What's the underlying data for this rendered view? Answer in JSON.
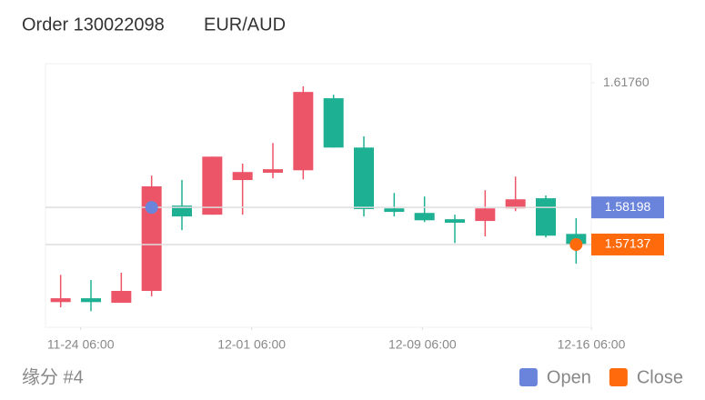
{
  "chart_data": {
    "type": "candlestick",
    "title": "Order 130022098",
    "subtitle": "EUR/AUD",
    "footer": "缘分 #4",
    "up_color": "#ec5467",
    "down_color": "#1db092",
    "x": [
      0,
      1,
      2,
      3,
      4,
      5,
      6,
      7,
      8,
      9,
      10,
      11,
      12,
      13,
      14,
      15,
      16,
      17
    ],
    "xlim": [
      -0.5,
      17.5
    ],
    "xticks": [
      {
        "value": 0.66,
        "label": "11-24 06:00"
      },
      {
        "value": 6.3,
        "label": "12-01 06:00"
      },
      {
        "value": 11.93,
        "label": "12-09 06:00"
      },
      {
        "value": 17.5,
        "label": "12-16 06:00"
      }
    ],
    "ylim": [
      1.5477,
      1.6231
    ],
    "yticks": [
      {
        "value": 1.6176,
        "label": "1.61760"
      }
    ],
    "open": [
      1.5549,
      1.556,
      1.5547,
      1.5581,
      1.5825,
      1.5799,
      1.5898,
      1.5919,
      1.5926,
      1.6132,
      1.5991,
      1.5817,
      1.5804,
      1.5786,
      1.5781,
      1.5817,
      1.5846,
      1.5744
    ],
    "high": [
      1.5627,
      1.5612,
      1.5633,
      1.5911,
      1.5898,
      1.5965,
      1.5945,
      1.6004,
      1.6166,
      1.6142,
      1.6023,
      1.5861,
      1.5851,
      1.5799,
      1.5869,
      1.5908,
      1.5854,
      1.5789
    ],
    "low": [
      1.5534,
      1.5523,
      1.5547,
      1.5565,
      1.5755,
      1.5799,
      1.5799,
      1.5903,
      1.59,
      1.5991,
      1.5794,
      1.5794,
      1.5778,
      1.5718,
      1.5737,
      1.5809,
      1.5734,
      1.5659
    ],
    "close": [
      1.556,
      1.5549,
      1.5581,
      1.588,
      1.5794,
      1.5965,
      1.5921,
      1.5929,
      1.615,
      1.5991,
      1.5815,
      1.5807,
      1.5783,
      1.5776,
      1.5817,
      1.5843,
      1.5739,
      1.5714
    ],
    "markers": [
      {
        "name": "Open",
        "color": "#6b84db",
        "x": 3,
        "value": 1.58198
      },
      {
        "name": "Close",
        "color": "#ff6a0d",
        "x": 17,
        "value": 1.57137
      }
    ]
  }
}
